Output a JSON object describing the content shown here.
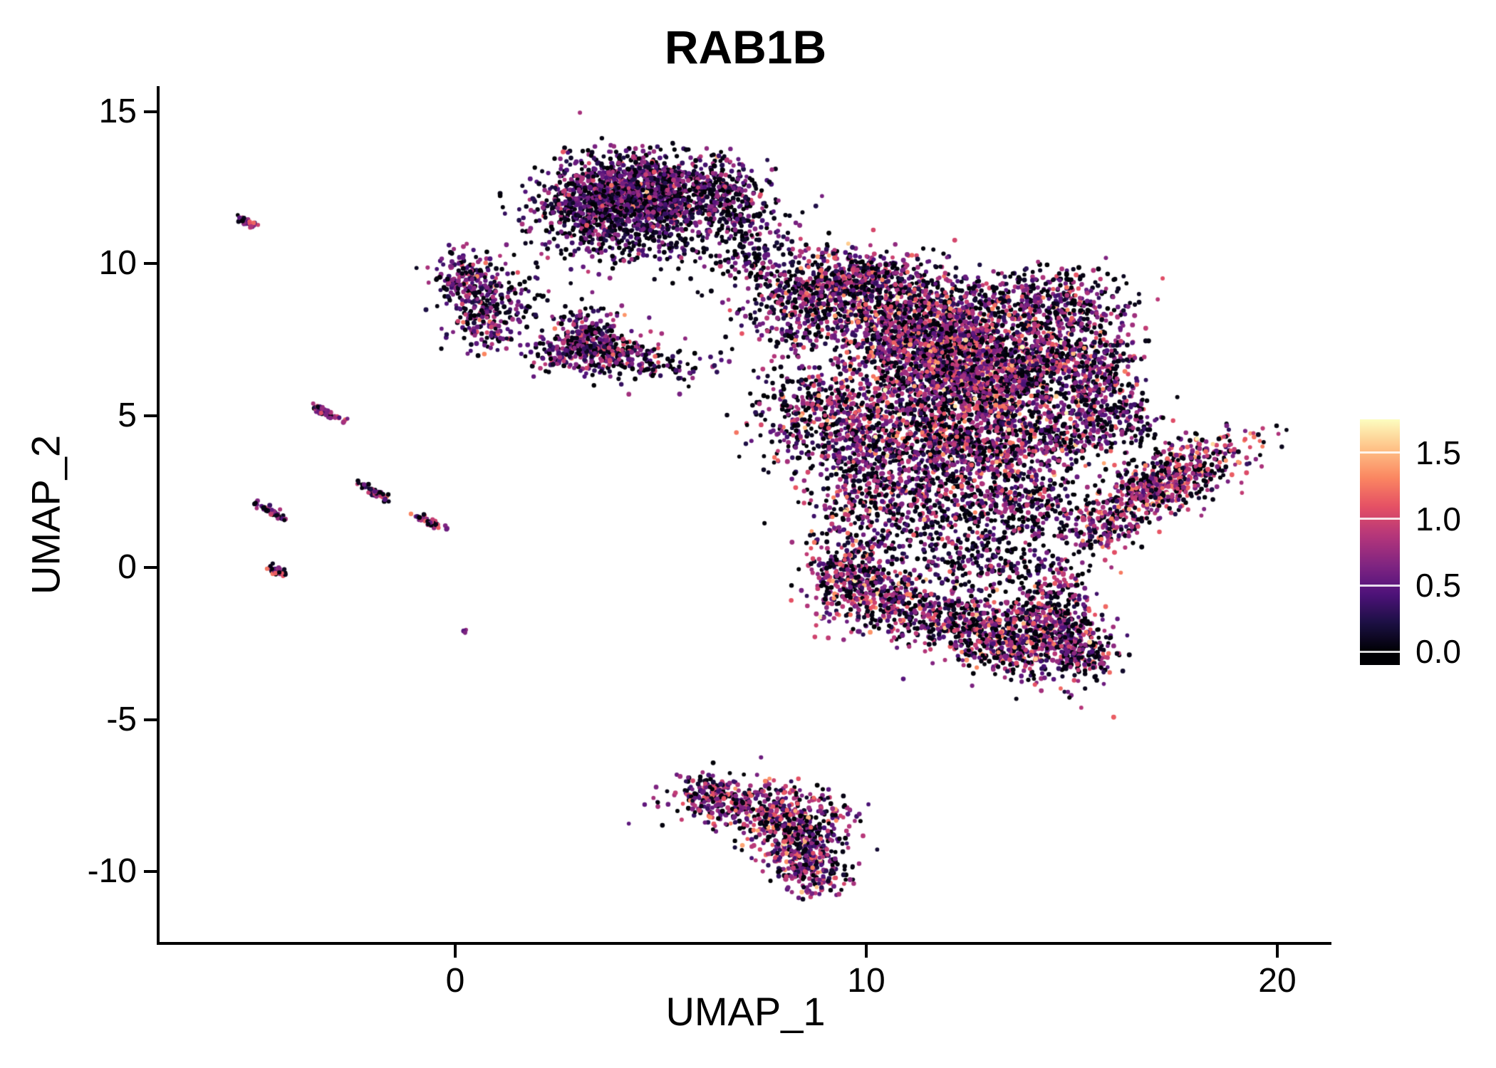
{
  "chart_data": {
    "type": "scatter",
    "title": "RAB1B",
    "xlabel": "UMAP_1",
    "ylabel": "UMAP_2",
    "xlim": [
      -7.2,
      21.3
    ],
    "ylim": [
      -12.3,
      15.8
    ],
    "grid": false,
    "background": "#ffffff",
    "axis_color": "#000000",
    "x_ticks": [
      {
        "v": 0,
        "label": "0"
      },
      {
        "v": 10,
        "label": "10"
      },
      {
        "v": 20,
        "label": "20"
      }
    ],
    "y_ticks": [
      {
        "v": 15,
        "label": "15"
      },
      {
        "v": 10,
        "label": "10"
      },
      {
        "v": 5,
        "label": "5"
      },
      {
        "v": 0,
        "label": "0"
      },
      {
        "v": -5,
        "label": "-5"
      },
      {
        "v": -10,
        "label": "-10"
      }
    ],
    "colorbar": {
      "position": "right",
      "value_min": 0.0,
      "value_max": 1.75,
      "ticks": [
        {
          "v": 1.5,
          "label": "1.5"
        },
        {
          "v": 1.0,
          "label": "1.0"
        },
        {
          "v": 0.5,
          "label": "0.5"
        },
        {
          "v": 0.0,
          "label": "0.0"
        }
      ]
    },
    "colormap": {
      "name": "magma",
      "stops": [
        {
          "pos": 0.0,
          "color": "#000004"
        },
        {
          "pos": 0.125,
          "color": "#1c1044"
        },
        {
          "pos": 0.25,
          "color": "#4f127b"
        },
        {
          "pos": 0.375,
          "color": "#812581"
        },
        {
          "pos": 0.5,
          "color": "#b5367a"
        },
        {
          "pos": 0.625,
          "color": "#e55064"
        },
        {
          "pos": 0.75,
          "color": "#fb8761"
        },
        {
          "pos": 0.875,
          "color": "#fec287"
        },
        {
          "pos": 1.0,
          "color": "#fcfdbf"
        }
      ]
    },
    "blob_fields": [
      "center_x",
      "center_y",
      "sd_x",
      "sd_y",
      "n_points",
      "zero_expression_fraction",
      "expression_mean",
      "expression_sd",
      "rotation_deg"
    ],
    "blobs": [
      [
        4.2,
        12.6,
        1.0,
        0.55,
        800,
        0.32,
        0.55,
        0.28,
        0
      ],
      [
        3.5,
        11.7,
        0.8,
        0.5,
        450,
        0.35,
        0.5,
        0.25,
        0
      ],
      [
        5.2,
        12.0,
        0.8,
        0.55,
        450,
        0.32,
        0.55,
        0.28,
        0
      ],
      [
        4.4,
        10.8,
        1.2,
        0.5,
        260,
        0.5,
        0.45,
        0.25,
        0
      ],
      [
        6.3,
        12.8,
        0.5,
        0.4,
        120,
        0.45,
        0.5,
        0.25,
        0
      ],
      [
        6.9,
        11.3,
        0.45,
        0.8,
        90,
        0.5,
        0.5,
        0.3,
        0
      ],
      [
        7.3,
        10.0,
        0.3,
        0.5,
        50,
        0.5,
        0.5,
        0.3,
        0
      ],
      [
        0.3,
        9.4,
        0.5,
        0.45,
        200,
        0.3,
        0.6,
        0.3,
        0
      ],
      [
        0.7,
        8.2,
        0.45,
        0.5,
        170,
        0.3,
        0.6,
        0.3,
        0
      ],
      [
        1.4,
        8.8,
        0.45,
        0.35,
        60,
        0.45,
        0.5,
        0.3,
        0
      ],
      [
        3.1,
        7.5,
        0.55,
        0.5,
        300,
        0.3,
        0.55,
        0.3,
        0
      ],
      [
        3.9,
        7.0,
        0.5,
        0.4,
        160,
        0.3,
        0.6,
        0.3,
        0
      ],
      [
        4.6,
        6.7,
        0.3,
        0.25,
        40,
        0.4,
        0.5,
        0.3,
        0
      ],
      [
        2.4,
        6.9,
        0.3,
        0.3,
        40,
        0.4,
        0.5,
        0.3,
        0
      ],
      [
        6.8,
        12.1,
        0.5,
        0.5,
        60,
        0.5,
        0.45,
        0.25,
        0
      ],
      [
        7.4,
        10.9,
        0.8,
        0.8,
        70,
        0.55,
        0.45,
        0.25,
        0
      ],
      [
        5.7,
        6.6,
        0.5,
        0.4,
        40,
        0.5,
        0.5,
        0.3,
        0
      ],
      [
        8.0,
        5.8,
        0.6,
        1.0,
        90,
        0.5,
        0.55,
        0.3,
        0
      ],
      [
        8.7,
        8.9,
        0.9,
        0.8,
        500,
        0.35,
        0.65,
        0.33,
        0
      ],
      [
        9.9,
        9.4,
        0.8,
        0.55,
        400,
        0.35,
        0.65,
        0.33,
        0
      ],
      [
        11.4,
        8.2,
        1.0,
        0.8,
        700,
        0.32,
        0.7,
        0.35,
        0
      ],
      [
        11.6,
        6.8,
        1.2,
        1.0,
        1100,
        0.3,
        0.75,
        0.35,
        0
      ],
      [
        13.1,
        6.2,
        1.1,
        0.95,
        1000,
        0.3,
        0.75,
        0.35,
        0
      ],
      [
        14.7,
        7.2,
        0.8,
        0.9,
        480,
        0.35,
        0.7,
        0.33,
        0
      ],
      [
        14.3,
        8.9,
        0.9,
        0.5,
        280,
        0.45,
        0.6,
        0.3,
        0
      ],
      [
        15.8,
        6.1,
        0.5,
        1.0,
        240,
        0.4,
        0.65,
        0.3,
        0
      ],
      [
        9.3,
        4.7,
        0.9,
        0.9,
        450,
        0.35,
        0.7,
        0.35,
        0
      ],
      [
        11.2,
        4.1,
        1.1,
        0.8,
        600,
        0.33,
        0.7,
        0.35,
        0
      ],
      [
        13.2,
        3.9,
        0.9,
        0.8,
        480,
        0.33,
        0.7,
        0.35,
        0
      ],
      [
        10.1,
        2.2,
        0.7,
        0.9,
        300,
        0.38,
        0.65,
        0.33,
        0
      ],
      [
        12.0,
        2.3,
        0.8,
        0.7,
        260,
        0.4,
        0.65,
        0.33,
        0
      ],
      [
        13.9,
        2.0,
        0.8,
        0.6,
        200,
        0.45,
        0.6,
        0.3,
        0
      ],
      [
        15.1,
        4.5,
        0.6,
        0.7,
        200,
        0.4,
        0.65,
        0.3,
        0
      ],
      [
        12.2,
        0.7,
        1.4,
        0.5,
        130,
        0.55,
        0.5,
        0.3,
        0
      ],
      [
        16.3,
        4.8,
        0.5,
        0.5,
        80,
        0.5,
        0.55,
        0.3,
        0
      ],
      [
        17.2,
        2.7,
        1.15,
        0.42,
        550,
        0.25,
        0.85,
        0.33,
        39
      ],
      [
        17.2,
        2.7,
        1.4,
        0.6,
        150,
        0.45,
        0.7,
        0.3,
        39
      ],
      [
        15.6,
        1.2,
        0.5,
        0.4,
        90,
        0.4,
        0.7,
        0.3,
        0
      ],
      [
        9.6,
        -0.3,
        0.55,
        0.7,
        330,
        0.3,
        0.75,
        0.35,
        0
      ],
      [
        10.7,
        -1.2,
        0.75,
        0.55,
        280,
        0.35,
        0.7,
        0.35,
        0
      ],
      [
        12.2,
        -1.7,
        0.8,
        0.55,
        320,
        0.35,
        0.7,
        0.35,
        0
      ],
      [
        13.4,
        -2.4,
        0.6,
        0.6,
        280,
        0.33,
        0.72,
        0.35,
        0
      ],
      [
        14.6,
        -2.3,
        0.6,
        0.8,
        380,
        0.33,
        0.72,
        0.35,
        0
      ],
      [
        14.4,
        -0.9,
        0.5,
        0.6,
        170,
        0.4,
        0.65,
        0.3,
        0
      ],
      [
        12.9,
        0.2,
        0.9,
        0.4,
        120,
        0.5,
        0.55,
        0.3,
        0
      ],
      [
        15.4,
        -2.9,
        0.4,
        0.5,
        120,
        0.4,
        0.65,
        0.3,
        0
      ],
      [
        7.0,
        -7.8,
        0.8,
        0.45,
        280,
        0.3,
        0.7,
        0.35,
        0
      ],
      [
        8.3,
        -8.3,
        0.7,
        0.5,
        280,
        0.3,
        0.75,
        0.35,
        0
      ],
      [
        8.4,
        -9.4,
        0.5,
        0.55,
        230,
        0.3,
        0.75,
        0.35,
        0
      ],
      [
        8.8,
        -10.1,
        0.35,
        0.35,
        110,
        0.3,
        0.7,
        0.35,
        0
      ],
      [
        6.2,
        -7.4,
        0.4,
        0.3,
        80,
        0.35,
        0.65,
        0.3,
        0
      ],
      [
        0.2,
        -2.1,
        0.05,
        0.05,
        3,
        0.2,
        0.6,
        0.2,
        0
      ]
    ],
    "streak_fields": [
      "center_x",
      "center_y",
      "length",
      "angle_deg",
      "n_points"
    ],
    "streaks": [
      [
        -5.05,
        11.35,
        0.35,
        -35,
        30
      ],
      [
        -3.15,
        5.1,
        0.55,
        -35,
        55
      ],
      [
        -2.0,
        2.5,
        0.5,
        -35,
        50
      ],
      [
        -4.5,
        1.85,
        0.45,
        -35,
        45
      ],
      [
        -0.65,
        1.5,
        0.5,
        -30,
        45
      ],
      [
        -4.35,
        -0.1,
        0.35,
        -35,
        35
      ]
    ],
    "streak_expression": {
      "zero": 0.25,
      "mean": 0.7,
      "sd": 0.3
    }
  }
}
